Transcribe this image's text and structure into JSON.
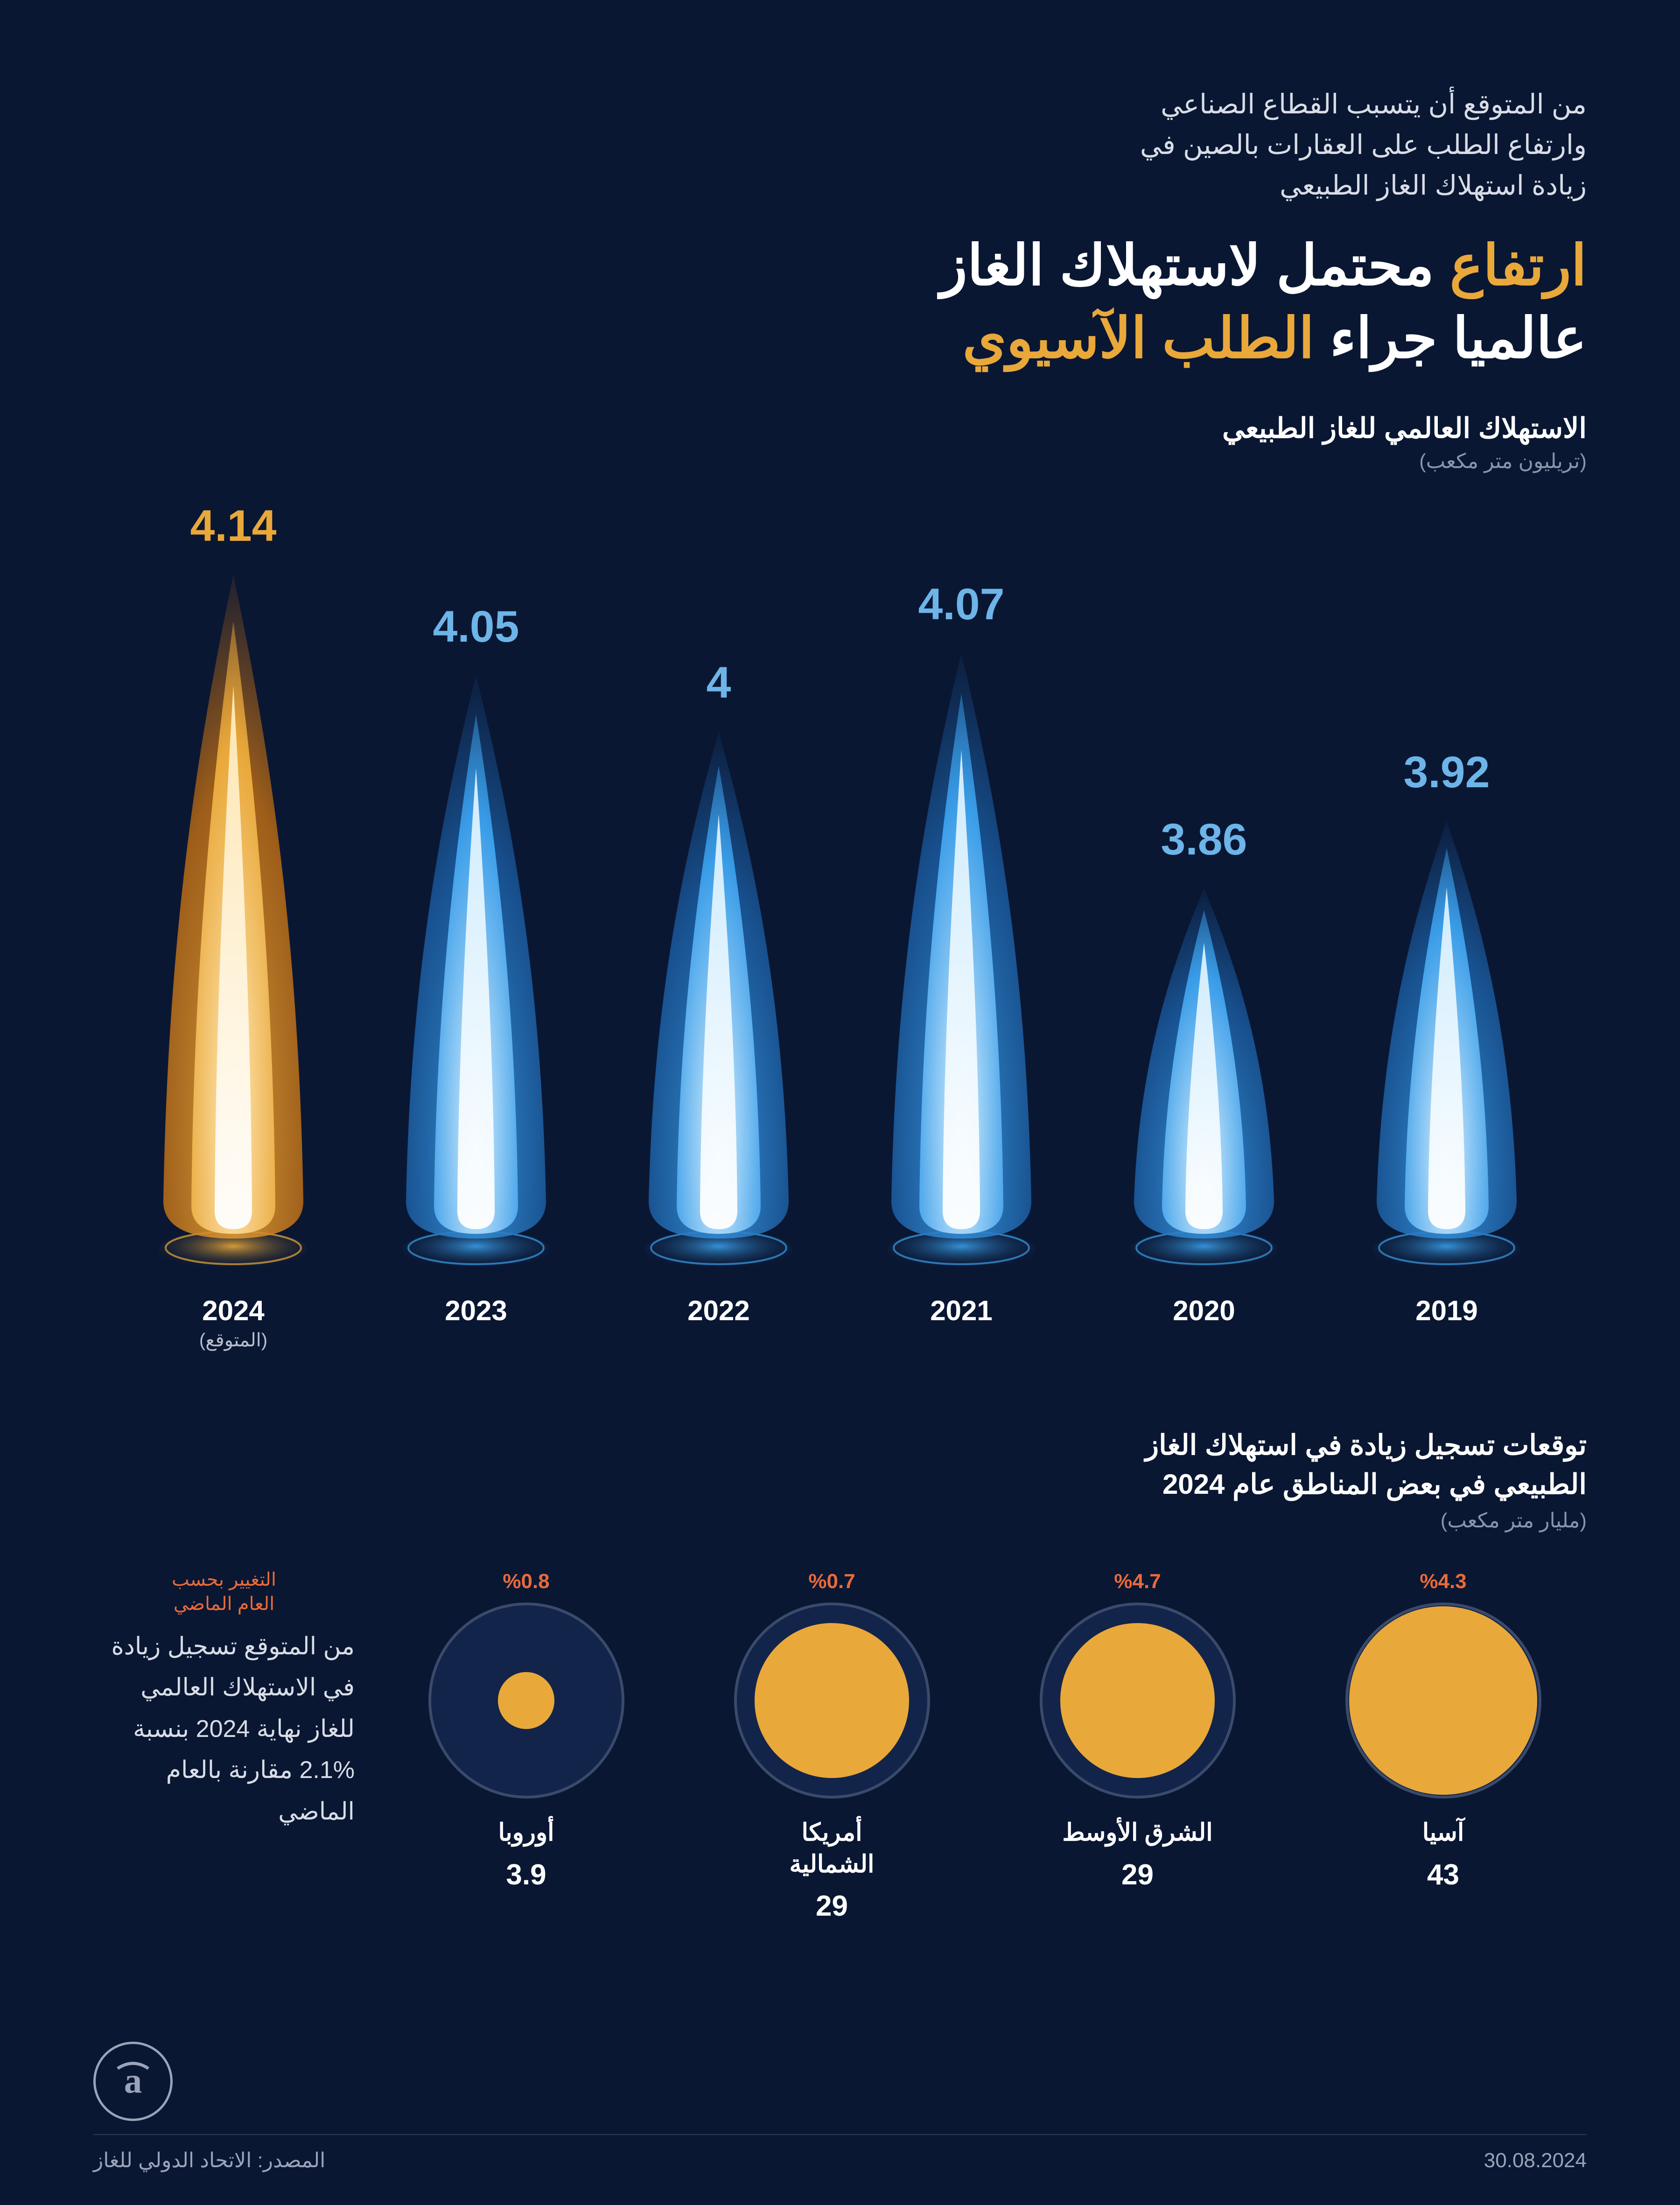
{
  "header": {
    "intro": "من المتوقع أن يتسبب القطاع الصناعي\nوارتفاع الطلب على العقارات بالصين في\nزيادة استهلاك الغاز الطبيعي",
    "title_line1_accent": "ارتفاع",
    "title_line1_rest": " محتمل لاستهلاك الغاز",
    "title_line2_start": "عالميا جراء ",
    "title_line2_accent": "الطلب الآسيوي"
  },
  "flame_chart": {
    "subtitle": "الاستهلاك العالمي للغاز الطبيعي",
    "unit": "(تريليون متر مكعب)",
    "min": 3.86,
    "max": 4.14,
    "base_height": 700,
    "scale": 2400,
    "colors": {
      "blue_value": "#6db4e8",
      "gold_value": "#e9a83a",
      "flame_outer_blue": "#1a5a9e",
      "flame_mid_blue": "#3a9de8",
      "flame_inner_blue": "#d8f0ff",
      "flame_outer_gold": "#b86a15",
      "flame_mid_gold": "#e9a83a",
      "flame_inner_gold": "#ffe9b8",
      "base_disc": "#2a4a7a"
    },
    "bars": [
      {
        "year": "2019",
        "value": 3.92,
        "type": "blue",
        "note": ""
      },
      {
        "year": "2020",
        "value": 3.86,
        "type": "blue",
        "note": ""
      },
      {
        "year": "2021",
        "value": 4.07,
        "type": "blue",
        "note": ""
      },
      {
        "year": "2022",
        "value": 4,
        "type": "blue",
        "note": "",
        "display": "4"
      },
      {
        "year": "2023",
        "value": 4.05,
        "type": "blue",
        "note": ""
      },
      {
        "year": "2024",
        "value": 4.14,
        "type": "gold",
        "note": "(المتوقع)"
      }
    ]
  },
  "regions": {
    "title": "توقعات تسجيل زيادة في استهلاك الغاز\nالطبيعي في بعض المناطق عام 2024",
    "unit": "(مليار متر مكعب)",
    "change_legend": "التغيير بحسب\nالعام الماضي",
    "summary": "من المتوقع تسجيل زيادة في الاستهلاك العالمي للغاز نهاية 2024 بنسبة %2.1 مقارنة بالعام الماضي",
    "outer_diameter": 420,
    "max_value": 43,
    "circle_fill": "#e9a83a",
    "outer_bg": "#12244a",
    "outer_border": "#3a4a6b",
    "pct_color": "#e96a3a",
    "items": [
      {
        "name": "آسيا",
        "value": 43,
        "pct": "%4.3"
      },
      {
        "name": "الشرق الأوسط",
        "value": 29,
        "pct": "%4.7"
      },
      {
        "name": "أمريكا\nالشمالية",
        "value": 29,
        "pct": "%0.7"
      },
      {
        "name": "أوروبا",
        "value": 3.9,
        "pct": "%0.8"
      }
    ]
  },
  "footer": {
    "date": "30.08.2024",
    "source": "المصدر: الاتحاد الدولي للغاز",
    "logo": "a͛"
  },
  "background": "#0a1733"
}
